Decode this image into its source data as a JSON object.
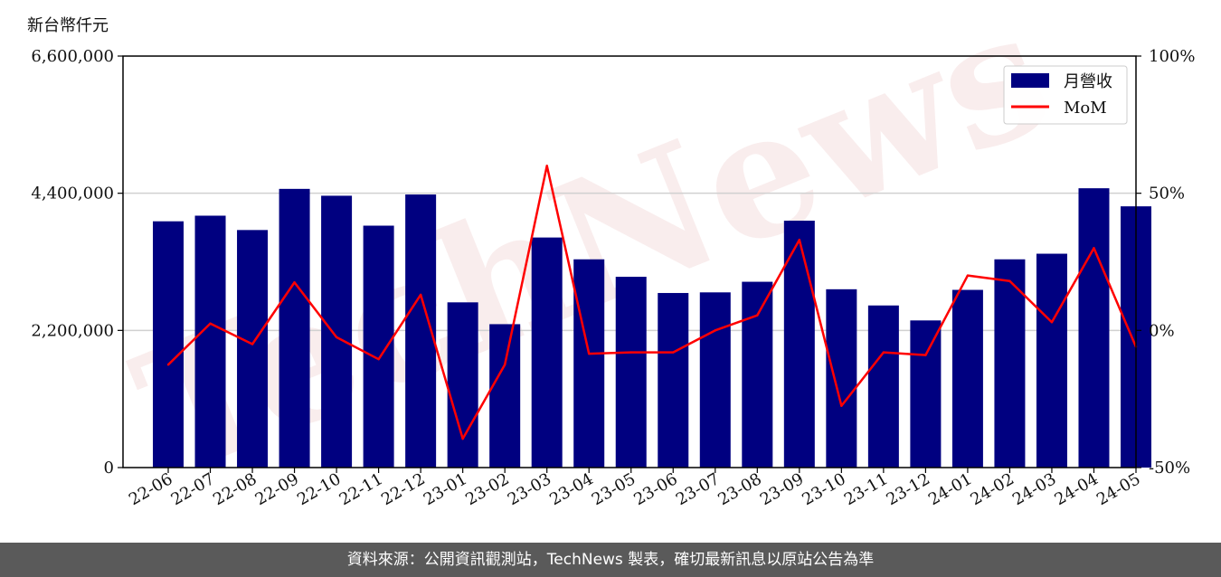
{
  "unit_label": "新台幣仟元",
  "watermark": "TechNews",
  "footer_text": "資料來源：公開資訊觀測站，TechNews 製表，確切最新訊息以原站公告為準",
  "colors": {
    "bar": "#000080",
    "line": "#ff0000",
    "grid": "#d0d0d0",
    "footer_bg": "#5a5a5a",
    "watermark": "#f2d6d6"
  },
  "chart_data": {
    "type": "bar",
    "categories": [
      "22-06",
      "22-07",
      "22-08",
      "22-09",
      "22-10",
      "22-11",
      "22-12",
      "23-01",
      "23-02",
      "23-03",
      "23-04",
      "23-05",
      "23-06",
      "23-07",
      "23-08",
      "23-09",
      "23-10",
      "23-11",
      "23-12",
      "24-01",
      "24-02",
      "24-03",
      "24-04",
      "24-05"
    ],
    "series": [
      {
        "name": "月營收",
        "type": "bar",
        "axis": "left",
        "values": [
          3950000,
          4040000,
          3810000,
          4470000,
          4360000,
          3880000,
          4380000,
          2650000,
          2300000,
          3690000,
          3340000,
          3060000,
          2800000,
          2810000,
          2980000,
          3960000,
          2860000,
          2600000,
          2360000,
          2850000,
          3340000,
          3430000,
          4480000,
          4190000
        ]
      },
      {
        "name": "MoM",
        "type": "line",
        "axis": "right",
        "values": [
          -12.5,
          2.5,
          -5,
          17.5,
          -2.5,
          -10.5,
          13,
          -39.5,
          -12.5,
          60,
          -8.5,
          -8,
          -8,
          0,
          5.5,
          33,
          -27.5,
          -8,
          -9,
          20,
          18,
          3,
          30,
          -6
        ]
      }
    ],
    "y_left": {
      "range": [
        0,
        6600000
      ],
      "ticks": [
        "0",
        "2,200,000",
        "4,400,000",
        "6,600,000"
      ],
      "tick_values": [
        0,
        2200000,
        4400000,
        6600000
      ]
    },
    "y_right": {
      "range": [
        -50,
        100
      ],
      "ticks": [
        "-50%",
        "0%",
        "50%",
        "100%"
      ],
      "tick_values": [
        -50,
        0,
        50,
        100
      ]
    },
    "grid": "horizontal",
    "legend_position": "top-right"
  }
}
